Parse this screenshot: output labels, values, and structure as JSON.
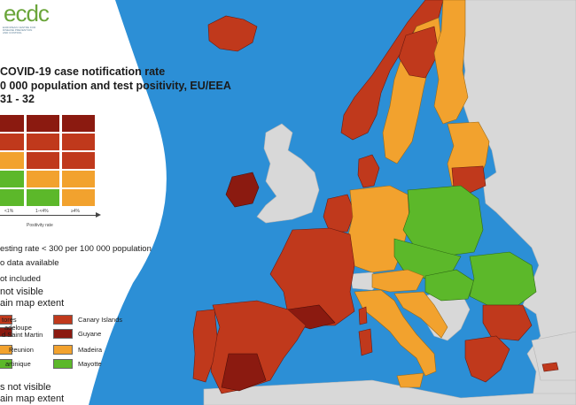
{
  "header": {
    "logo_text": "ecdc",
    "logo_subtitle": "EUROPEAN CENTRE FOR DISEASE PREVENTION AND CONTROL",
    "title_lines": [
      "COVID-19 case notification rate",
      "0 000 population and test positivity, EU/EEA",
      "31 - 32"
    ]
  },
  "matrix": {
    "x_ticks": [
      "<1%",
      "1-<4%",
      "≥4%"
    ],
    "x_axis_label": "Positivity rate",
    "rows": [
      [
        "#8b1a10",
        "#8b1a10",
        "#8b1a10"
      ],
      [
        "#c0391c",
        "#c0391c",
        "#c0391c"
      ],
      [
        "#f2a22e",
        "#c0391c",
        "#c0391c"
      ],
      [
        "#5cb82a",
        "#f2a22e",
        "#f2a22e"
      ],
      [
        "#5cb82a",
        "#5cb82a",
        "#f2a22e"
      ]
    ]
  },
  "legend": {
    "testing_rate_note": "esting rate < 300 per 100 000 population",
    "no_data": "o data available",
    "not_included": "ot included",
    "not_visible_1_a": " not visible",
    "not_visible_1_b": "ain map extent",
    "not_visible_2_a": "s not visible",
    "not_visible_2_b": "ain map extent"
  },
  "regions": {
    "left": [
      "tores",
      "adeloupe",
      "d Saint Martin",
      "Reunion",
      "artinique"
    ],
    "right": [
      "Canary Islands",
      "Guyane",
      "Madeira",
      "Mayotte"
    ],
    "right_colors": [
      "#c0391c",
      "#8b1a10",
      "#f2a22e",
      "#5cb82a"
    ]
  },
  "colors": {
    "sea": "#2c8fd6",
    "non_eu_land": "#d8d8d8",
    "dark_red": "#8b1a10",
    "red": "#c0391c",
    "orange": "#f2a22e",
    "green": "#5cb82a",
    "legend_panel": "#ffffff"
  }
}
